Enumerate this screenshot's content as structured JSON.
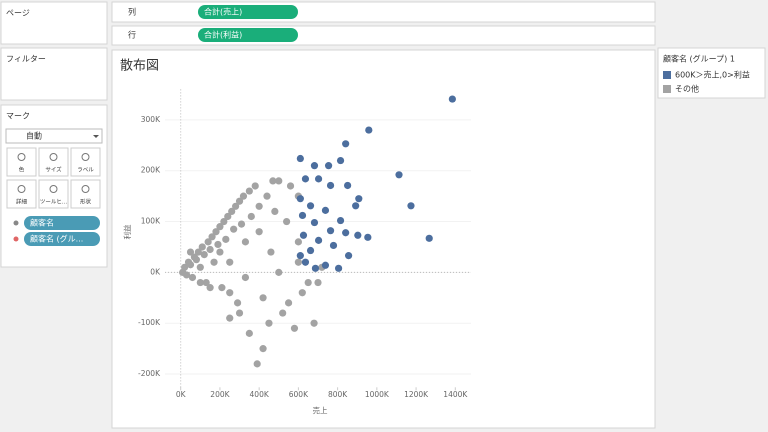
{
  "panels": {
    "pages": "ページ",
    "filters": "フィルター",
    "marks": "マーク",
    "mark_type": "自動",
    "mark_buttons": [
      "色",
      "サイズ",
      "ラベル",
      "詳細",
      "ツールヒ...",
      "形状"
    ],
    "mark_pills": [
      "顧客名",
      "顧客名 (グル..."
    ]
  },
  "shelves": {
    "columns_label": "列",
    "columns_pill": "合計(売上)",
    "rows_label": "行",
    "rows_pill": "合計(利益)"
  },
  "legend_title": "顧客名 (グループ) 1",
  "chart_data": {
    "type": "scatter",
    "title": "散布図",
    "x_label": "売上",
    "y_label": "利益",
    "xlim": [
      -80000,
      1480000
    ],
    "xticks": [
      {
        "value": 0,
        "label": "0K"
      },
      {
        "value": 200000,
        "label": "200K"
      },
      {
        "value": 400000,
        "label": "400K"
      },
      {
        "value": 600000,
        "label": "600K"
      },
      {
        "value": 800000,
        "label": "800K"
      },
      {
        "value": 1000000,
        "label": "1000K"
      },
      {
        "value": 1200000,
        "label": "1200K"
      },
      {
        "value": 1400000,
        "label": "1400K"
      }
    ],
    "ylim": [
      -230000,
      360000
    ],
    "yticks": [
      {
        "value": -200000,
        "label": "-200K"
      },
      {
        "value": -100000,
        "label": "-100K"
      },
      {
        "value": 0,
        "label": "0K"
      },
      {
        "value": 100000,
        "label": "100K"
      },
      {
        "value": 200000,
        "label": "200K"
      },
      {
        "value": 300000,
        "label": "300K"
      }
    ],
    "grid": true,
    "series": [
      {
        "name": "その他",
        "color": "#a3a3a3",
        "x": [
          10000,
          20000,
          30000,
          40000,
          50000,
          60000,
          70000,
          80000,
          90000,
          100000,
          110000,
          120000,
          130000,
          140000,
          150000,
          160000,
          170000,
          180000,
          190000,
          200000,
          210000,
          220000,
          230000,
          240000,
          250000,
          260000,
          270000,
          280000,
          290000,
          300000,
          310000,
          320000,
          330000,
          350000,
          360000,
          380000,
          400000,
          420000,
          440000,
          460000,
          480000,
          500000,
          520000,
          540000,
          560000,
          580000,
          600000,
          620000,
          650000,
          680000,
          700000,
          720000,
          420000,
          390000,
          350000,
          300000,
          250000,
          450000,
          500000,
          600000,
          550000,
          470000,
          400000,
          330000,
          150000,
          100000,
          50000,
          200000,
          250000,
          600000
        ],
        "values": [
          0,
          10000,
          -5000,
          20000,
          15000,
          -10000,
          30000,
          25000,
          40000,
          10000,
          50000,
          35000,
          -20000,
          60000,
          45000,
          70000,
          20000,
          80000,
          55000,
          90000,
          -30000,
          100000,
          65000,
          110000,
          -40000,
          120000,
          85000,
          130000,
          -60000,
          140000,
          95000,
          150000,
          -10000,
          160000,
          110000,
          170000,
          130000,
          -50000,
          150000,
          40000,
          120000,
          0,
          -80000,
          100000,
          170000,
          -110000,
          60000,
          -40000,
          -20000,
          -100000,
          -20000,
          10000,
          -150000,
          -180000,
          -120000,
          -80000,
          -90000,
          -100000,
          180000,
          150000,
          -60000,
          180000,
          80000,
          60000,
          -30000,
          -20000,
          40000,
          40000,
          20000,
          20000
        ]
      },
      {
        "name": "600K＞売上,0>利益",
        "color": "#4c6e9e",
        "x": [
          1385000,
          959000,
          1113000,
          1174000,
          1267000,
          841000,
          610000,
          682000,
          754000,
          815000,
          636000,
          703000,
          764000,
          851000,
          908000,
          610000,
          662000,
          738000,
          815000,
          621000,
          682000,
          764000,
          841000,
          903000,
          954000,
          626000,
          703000,
          779000,
          856000,
          662000,
          610000,
          738000,
          687000,
          636000,
          805000,
          892000
        ],
        "values": [
          341000,
          280000,
          192000,
          131000,
          67000,
          253000,
          224000,
          210000,
          210000,
          220000,
          184000,
          184000,
          171000,
          171000,
          145000,
          145000,
          131000,
          122000,
          102000,
          112000,
          98000,
          82000,
          78000,
          73000,
          69000,
          73000,
          63000,
          53000,
          33000,
          43000,
          33000,
          14000,
          8000,
          20000,
          8000,
          131000
        ]
      }
    ]
  }
}
